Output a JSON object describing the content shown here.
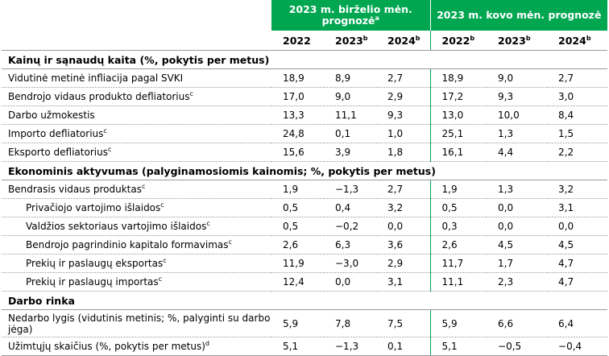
{
  "header": {
    "group_june": "2023 m. birželio mėn. prognozė",
    "group_june_sup": "a",
    "group_march": "2023 m. kovo mėn. prognozė",
    "years": [
      {
        "label": "2022",
        "sup": ""
      },
      {
        "label": "2023",
        "sup": "b"
      },
      {
        "label": "2024",
        "sup": "b"
      },
      {
        "label": "2022",
        "sup": "b"
      },
      {
        "label": "2023",
        "sup": "b"
      },
      {
        "label": "2024",
        "sup": "b"
      }
    ]
  },
  "rows": [
    {
      "type": "section",
      "label": "Kainų ir sąnaudų kaita (%, pokytis per metus)"
    },
    {
      "type": "row",
      "label": "Vidutinė metinė infliacija pagal SVKI",
      "sup": "",
      "values": [
        "18,9",
        "8,9",
        "2,7",
        "18,9",
        "9,0",
        "2,7"
      ]
    },
    {
      "type": "row",
      "label": "Bendrojo vidaus produkto defliatorius",
      "sup": "c",
      "values": [
        "17,0",
        "9,0",
        "2,9",
        "17,2",
        "9,3",
        "3,0"
      ]
    },
    {
      "type": "row",
      "label": "Darbo užmokestis",
      "sup": "",
      "values": [
        "13,3",
        "11,1",
        "9,3",
        "13,0",
        "10,0",
        "8,4"
      ]
    },
    {
      "type": "row",
      "label": "Importo defliatorius",
      "sup": "c",
      "values": [
        "24,8",
        "0,1",
        "1,0",
        "25,1",
        "1,3",
        "1,5"
      ]
    },
    {
      "type": "row",
      "label": "Eksporto defliatorius",
      "sup": "c",
      "values": [
        "15,6",
        "3,9",
        "1,8",
        "16,1",
        "4,4",
        "2,2"
      ]
    },
    {
      "type": "section",
      "label": "Ekonominis aktyvumas (palyginamosiomis kainomis; %, pokytis per metus)"
    },
    {
      "type": "row",
      "label": "Bendrasis vidaus produktas",
      "sup": "c",
      "values": [
        "1,9",
        "−1,3",
        "2,7",
        "1,9",
        "1,3",
        "3,2"
      ]
    },
    {
      "type": "row",
      "indent": true,
      "label": "Privačiojo vartojimo išlaidos",
      "sup": "c",
      "values": [
        "0,5",
        "0,4",
        "3,2",
        "0,5",
        "0,0",
        "3,1"
      ]
    },
    {
      "type": "row",
      "indent": true,
      "label": "Valdžios sektoriaus vartojimo išlaidos",
      "sup": "c",
      "values": [
        "0,5",
        "−0,2",
        "0,0",
        "0,3",
        "0,0",
        "0,0"
      ]
    },
    {
      "type": "row",
      "indent": true,
      "label": "Bendrojo pagrindinio kapitalo formavimas",
      "sup": "c",
      "values": [
        "2,6",
        "6,3",
        "3,6",
        "2,6",
        "4,5",
        "4,5"
      ]
    },
    {
      "type": "row",
      "indent": true,
      "label": "Prekių ir paslaugų eksportas",
      "sup": "c",
      "values": [
        "11,9",
        "−3,0",
        "2,9",
        "11,7",
        "1,7",
        "4,7"
      ]
    },
    {
      "type": "row",
      "indent": true,
      "label": "Prekių ir paslaugų importas",
      "sup": "c",
      "values": [
        "12,4",
        "0,0",
        "3,1",
        "11,1",
        "2,3",
        "4,7"
      ]
    },
    {
      "type": "section",
      "label": "Darbo rinka"
    },
    {
      "type": "row",
      "tall": true,
      "label": "Nedarbo lygis (vidutinis metinis; %, palyginti su darbo jėga)",
      "sup": "",
      "values": [
        "5,9",
        "7,8",
        "7,5",
        "5,9",
        "6,6",
        "6,4"
      ]
    },
    {
      "type": "row",
      "last": true,
      "label": "Užimtųjų skaičius (%, pokytis per metus)",
      "sup": "d",
      "values": [
        "5,1",
        "−1,3",
        "0,1",
        "5,1",
        "−0,5",
        "−0,4"
      ]
    }
  ],
  "colors": {
    "accent_green": "#00a650",
    "rule_gray": "#9a9a9a"
  }
}
